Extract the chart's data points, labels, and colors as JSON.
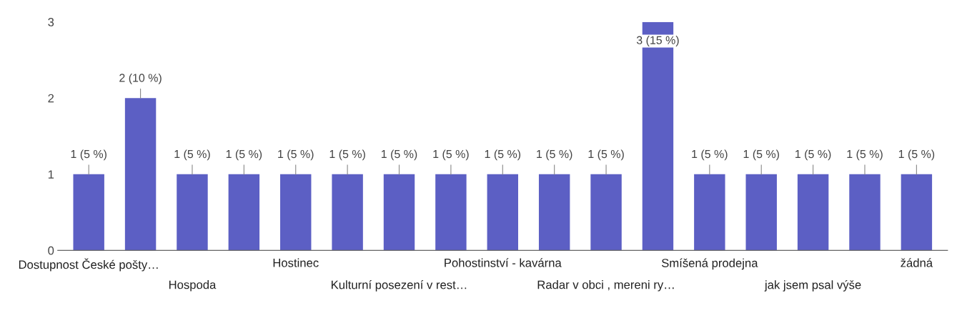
{
  "chart_data": {
    "type": "bar",
    "categories": [
      "Dostupnost České pošty…",
      null,
      "Hospoda",
      null,
      "Hostinec",
      null,
      "Kulturní posezení v rest…",
      null,
      "Pohostinství - kavárna",
      null,
      "Radar v obci , mereni ry…",
      null,
      "Smíšená prodejna",
      null,
      "jak jsem psal výše",
      null,
      "žádná"
    ],
    "values": [
      1,
      2,
      1,
      1,
      1,
      1,
      1,
      1,
      1,
      1,
      1,
      3,
      1,
      1,
      1,
      1,
      1
    ],
    "value_labels": [
      "1 (5 %)",
      "2 (10 %)",
      "1 (5 %)",
      "1 (5 %)",
      "1 (5 %)",
      "1 (5 %)",
      "1 (5 %)",
      "1 (5 %)",
      "1 (5 %)",
      "1 (5 %)",
      "1 (5 %)",
      "3 (15 %)",
      "1 (5 %)",
      "1 (5 %)",
      "1 (5 %)",
      "1 (5 %)",
      "1 (5 %)"
    ],
    "color": "#5c5fc4",
    "ylim": [
      0,
      3
    ],
    "yticks": [
      0,
      1,
      2,
      3
    ],
    "grid": false
  }
}
